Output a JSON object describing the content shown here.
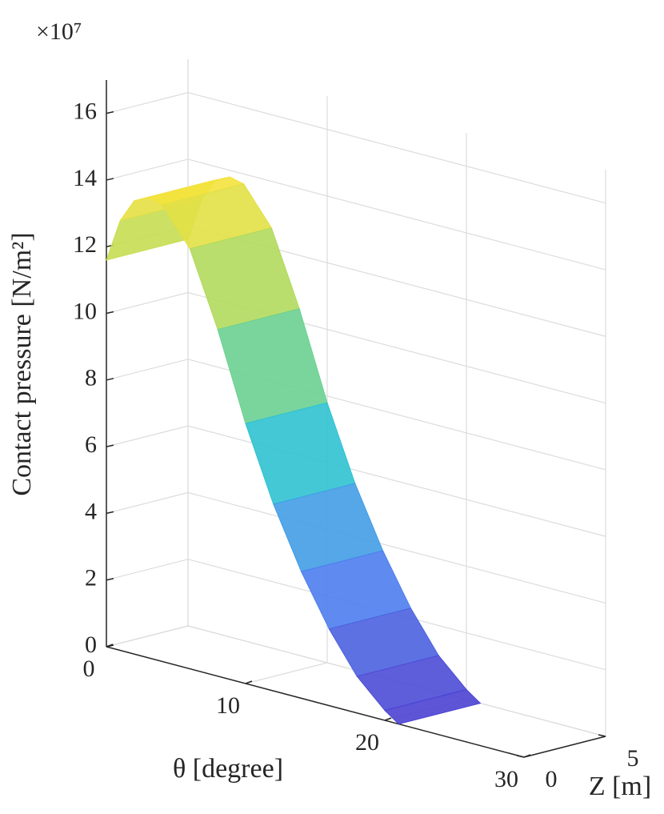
{
  "chart_data": {
    "type": "surface",
    "y_exponent_label": "×10⁷",
    "ylabel": "Contact pressure [N/m²]",
    "xlabel": "θ [degree]",
    "zlabel": "Z [m]",
    "x": [
      0,
      1,
      2,
      3,
      4,
      6,
      8,
      10,
      12,
      14,
      16,
      18,
      20,
      21
    ],
    "z": [
      0,
      5
    ],
    "values": [
      [
        11.6,
        12.9,
        13.6,
        13.8,
        13.7,
        12.6,
        10.4,
        7.8,
        5.6,
        3.8,
        2.3,
        1.1,
        0.3,
        0
      ],
      [
        11.6,
        12.9,
        13.6,
        13.8,
        13.7,
        12.6,
        10.4,
        7.8,
        5.6,
        3.8,
        2.3,
        1.1,
        0.3,
        0
      ]
    ],
    "xlim": [
      0,
      30
    ],
    "xticks": [
      0,
      10,
      20,
      30
    ],
    "zlim": [
      0,
      5
    ],
    "zticks": [
      0,
      5
    ],
    "ylim": [
      0,
      17
    ],
    "yticks": [
      0,
      2,
      4,
      6,
      8,
      10,
      12,
      14,
      16
    ],
    "grid": true,
    "colormap": [
      "#4b3fcf",
      "#4e86f2",
      "#2ec6d0",
      "#8fd66e",
      "#f5e23c"
    ]
  }
}
